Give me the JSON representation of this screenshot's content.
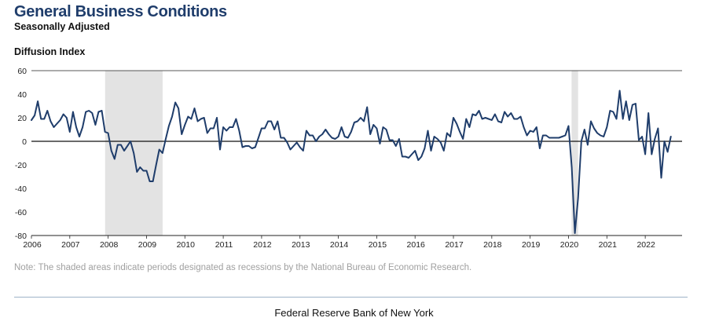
{
  "header": {
    "title": "General Business Conditions",
    "subtitle": "Seasonally Adjusted",
    "axis_label": "Diffusion Index"
  },
  "note": "Note: The shaded areas indicate periods designated as recessions by the National Bureau of Economic Research.",
  "footer": "Federal Reserve Bank of New York",
  "colors": {
    "line": "#1f3d6b",
    "recession": "#e3e3e3",
    "zero_line": "#111111"
  },
  "chart_data": {
    "type": "line",
    "title": "General Business Conditions",
    "subtitle": "Seasonally Adjusted",
    "ylabel": "Diffusion Index",
    "xlabel": "",
    "ylim": [
      -80,
      60
    ],
    "xlim": [
      2006.0,
      2022.96
    ],
    "yticks": [
      60,
      40,
      20,
      0,
      -20,
      -40,
      -60,
      -80
    ],
    "xticks": [
      "2006",
      "2007",
      "2008",
      "2009",
      "2010",
      "2011",
      "2012",
      "2013",
      "2014",
      "2015",
      "2016",
      "2017",
      "2018",
      "2019",
      "2020",
      "2021",
      "2022"
    ],
    "recessions": [
      [
        2007.92,
        2009.42
      ],
      [
        2020.08,
        2020.25
      ]
    ],
    "series": [
      {
        "name": "General Business Conditions",
        "start": 2006.0,
        "step": 0.0833333,
        "values": [
          18,
          22,
          34,
          19,
          19,
          26,
          17,
          12,
          15,
          18,
          23,
          20,
          8,
          25,
          12,
          4,
          12,
          25,
          26,
          24,
          14,
          25,
          26,
          8,
          7,
          -8,
          -15,
          -3,
          -3,
          -8,
          -4,
          0,
          -10,
          -26,
          -22,
          -25,
          -25,
          -34,
          -34,
          -20,
          -7,
          -10,
          2,
          13,
          21,
          33,
          28,
          6,
          14,
          21,
          19,
          28,
          17,
          19,
          20,
          7,
          11,
          11,
          20,
          -7,
          12,
          9,
          12,
          12,
          19,
          9,
          -5,
          -4,
          -4,
          -6,
          -5,
          3,
          11,
          11,
          17,
          17,
          10,
          17,
          3,
          3,
          -1,
          -7,
          -4,
          -1,
          -5,
          -8,
          9,
          5,
          5,
          0,
          4,
          6,
          10,
          6,
          3,
          2,
          4,
          12,
          4,
          3,
          8,
          16,
          17,
          20,
          17,
          29,
          6,
          14,
          11,
          -2,
          12,
          10,
          1,
          1,
          -4,
          2,
          -13,
          -13,
          -14,
          -11,
          -8,
          -16,
          -13,
          -6,
          9,
          -8,
          4,
          2,
          -1,
          -8,
          7,
          4,
          20,
          15,
          8,
          2,
          19,
          12,
          23,
          22,
          26,
          19,
          20,
          19,
          18,
          23,
          17,
          16,
          25,
          21,
          24,
          19,
          19,
          21,
          12,
          5,
          9,
          8,
          12,
          -6,
          5,
          5,
          3,
          3,
          3,
          3,
          4,
          5,
          13,
          -22,
          -78,
          -48,
          0,
          10,
          -3,
          17,
          11,
          7,
          5,
          4,
          12,
          26,
          25,
          19,
          43,
          19,
          34,
          18,
          31,
          32,
          1,
          4,
          -11,
          24,
          -11,
          2,
          11,
          -31,
          0,
          -9,
          4
        ]
      }
    ]
  }
}
